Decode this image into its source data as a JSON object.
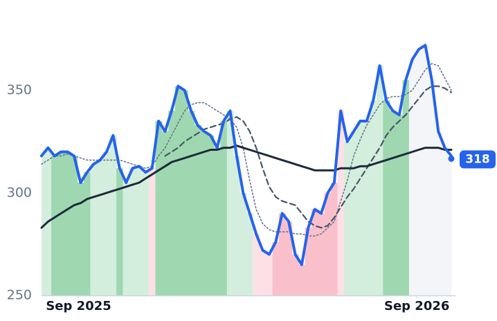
{
  "chart_data": {
    "type": "line",
    "x": [
      0,
      1,
      2,
      3,
      4,
      5,
      6,
      7,
      8,
      9,
      10,
      11,
      12,
      13,
      14,
      15,
      16,
      17,
      18,
      19,
      20,
      21,
      22,
      23,
      24,
      25,
      26,
      27,
      28,
      29,
      30,
      31,
      32,
      33,
      34,
      35,
      36,
      37,
      38,
      39,
      40,
      41,
      42,
      43,
      44,
      45,
      46,
      47,
      48,
      49,
      50,
      51,
      52,
      53,
      54,
      55,
      56,
      57,
      58,
      59,
      60,
      61,
      62,
      63
    ],
    "xlim": [
      0,
      63
    ],
    "xticks": [
      {
        "value": 5.7,
        "label": "Sep 2025"
      },
      {
        "value": 57.7,
        "label": "Sep 2026"
      }
    ],
    "ylim": [
      250,
      390
    ],
    "yticks": [
      250,
      300,
      350
    ],
    "series": [
      {
        "color": "#2563eb",
        "width": 4,
        "dash": "none",
        "values": [
          318,
          322,
          318,
          320,
          320,
          318,
          305,
          310,
          314,
          316,
          320,
          328,
          312,
          305,
          312,
          313,
          310,
          312,
          335,
          330,
          340,
          352,
          350,
          340,
          333,
          330,
          328,
          322,
          335,
          340,
          318,
          300,
          290,
          280,
          272,
          270,
          276,
          290,
          286,
          270,
          265,
          283,
          292,
          290,
          300,
          305,
          340,
          325,
          330,
          335,
          335,
          345,
          362,
          345,
          340,
          338,
          355,
          365,
          370,
          372,
          355,
          330,
          322,
          318
        ]
      },
      {
        "color": "#1e293b",
        "width": 3,
        "dash": "none",
        "values": [
          283,
          286,
          288,
          290,
          292,
          294,
          295,
          297,
          298,
          299,
          300,
          301,
          302,
          303,
          304,
          305,
          307,
          309,
          311,
          313,
          315,
          316,
          317,
          318,
          319,
          320,
          321,
          321,
          322,
          322,
          323,
          322,
          321,
          320,
          319,
          318,
          317,
          316,
          315,
          314,
          313,
          312,
          311,
          311,
          311,
          311,
          312,
          312,
          312,
          313,
          313,
          314,
          315,
          316,
          317,
          318,
          319,
          320,
          321,
          322,
          322,
          322,
          321,
          321
        ]
      },
      {
        "color": "#475569",
        "width": 2.2,
        "dash": "8 5",
        "values": [
          null,
          null,
          null,
          null,
          null,
          null,
          null,
          null,
          null,
          null,
          null,
          null,
          null,
          null,
          null,
          null,
          null,
          null,
          null,
          318,
          320,
          322,
          325,
          327,
          329,
          331,
          332,
          333,
          334,
          336,
          337,
          335,
          330,
          322,
          312,
          303,
          298,
          296,
          295,
          294,
          290,
          286,
          284,
          283,
          284,
          288,
          293,
          298,
          302,
          307,
          312,
          317,
          322,
          328,
          332,
          335,
          338,
          342,
          346,
          350,
          352,
          352,
          351,
          349
        ]
      },
      {
        "color": "#64748b",
        "width": 1.6,
        "dash": "2 3",
        "values": [
          314,
          316,
          318,
          318,
          319,
          318,
          317,
          316,
          316,
          316,
          316,
          316,
          316,
          315,
          314,
          313,
          312,
          313,
          318,
          322,
          328,
          334,
          340,
          343,
          344,
          344,
          342,
          340,
          338,
          336,
          332,
          322,
          306,
          292,
          285,
          282,
          281,
          281,
          281,
          280,
          280,
          279,
          279,
          280,
          283,
          286,
          296,
          306,
          318,
          326,
          333,
          338,
          343,
          346,
          347,
          347,
          348,
          350,
          355,
          360,
          363,
          362,
          356,
          350
        ]
      }
    ],
    "band_colors": [
      "#d4eedd",
      "#d4eedd",
      "#9fd8b0",
      "#9fd8b0",
      "#9fd8b0",
      "#9fd8b0",
      "#9fd8b0",
      "#9fd8b0",
      "#d4eedd",
      "#d4eedd",
      "#d4eedd",
      "#d4eedd",
      "#9fd8b0",
      "#d4eedd",
      "#d4eedd",
      "#d4eedd",
      "#d4eedd",
      "#fde0e6",
      "#9fd8b0",
      "#9fd8b0",
      "#9fd8b0",
      "#9fd8b0",
      "#9fd8b0",
      "#9fd8b0",
      "#9fd8b0",
      "#9fd8b0",
      "#9fd8b0",
      "#9fd8b0",
      "#9fd8b0",
      "#d4eedd",
      "#d4eedd",
      "#d4eedd",
      "#d4eedd",
      "#fde0e6",
      "#fde0e6",
      "#fde0e6",
      "#f9c0cc",
      "#f9c0cc",
      "#f9c0cc",
      "#f9c0cc",
      "#f9c0cc",
      "#f9c0cc",
      "#f9c0cc",
      "#f9c0cc",
      "#f9c0cc",
      "#f9c0cc",
      "#fde0e6",
      "#d4eedd",
      "#d4eedd",
      "#d4eedd",
      "#d4eedd",
      "#d4eedd",
      "#d4eedd",
      "#9fd8b0",
      "#9fd8b0",
      "#9fd8b0",
      "#9fd8b0",
      "#f4f5f8",
      "#f4f5f8",
      "#f4f5f8",
      "#f4f5f8",
      "#f4f5f8",
      "#f4f5f8",
      "#f4f5f8"
    ],
    "last_value_color": "#2563eb"
  }
}
